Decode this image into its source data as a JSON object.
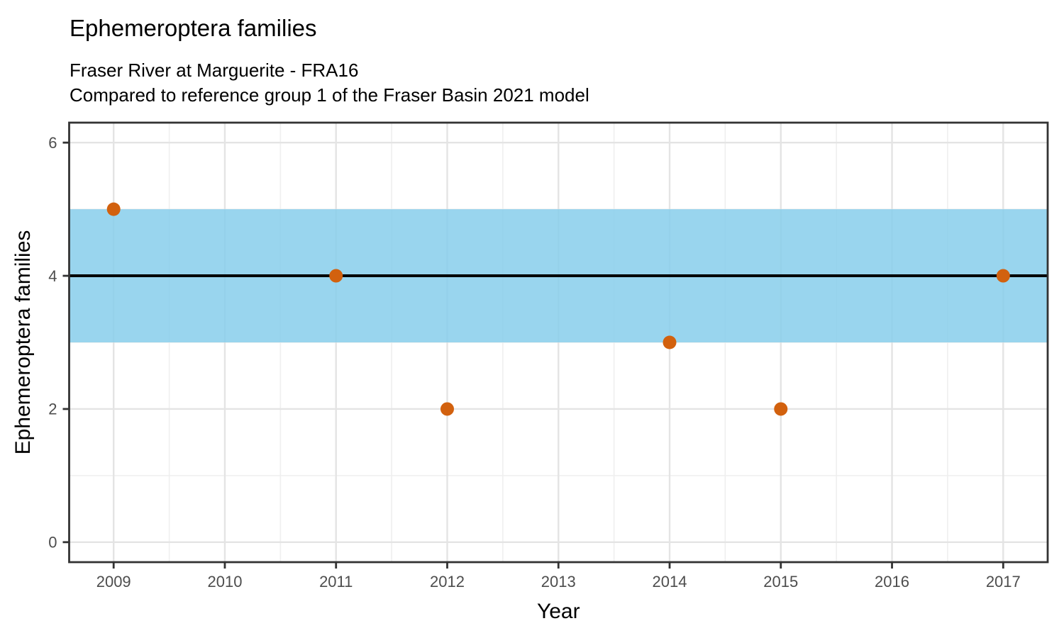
{
  "chart_data": {
    "type": "scatter",
    "title": "Ephemeroptera families",
    "subtitle_line1": "Fraser River at Marguerite - FRA16",
    "subtitle_line2": "Compared to reference group 1 of the Fraser Basin 2021 model",
    "xlabel": "Year",
    "ylabel": "Ephemeroptera families",
    "x_ticks": [
      2009,
      2010,
      2011,
      2012,
      2013,
      2014,
      2015,
      2016,
      2017
    ],
    "y_ticks": [
      0,
      2,
      4,
      6
    ],
    "xlim": [
      2008.6,
      2017.4
    ],
    "ylim": [
      -0.3,
      6.3
    ],
    "grid": "major+minor",
    "legend": "none",
    "points": [
      {
        "x": 2009,
        "y": 5
      },
      {
        "x": 2011,
        "y": 4
      },
      {
        "x": 2012,
        "y": 2
      },
      {
        "x": 2014,
        "y": 3
      },
      {
        "x": 2015,
        "y": 2
      },
      {
        "x": 2017,
        "y": 4
      }
    ],
    "reference_band": {
      "ymin": 3,
      "ymax": 5,
      "color": "#87CEEB",
      "opacity": 0.85
    },
    "reference_line": {
      "y": 4,
      "color": "#000000",
      "width": 4
    },
    "style": {
      "point_color": "#D2610E",
      "point_radius": 9.5,
      "grid_major_color": "#E4E4E4",
      "grid_minor_color": "#EFEFEF",
      "panel_border_color": "#333333",
      "tick_color": "#333333",
      "tick_label_color": "#4D4D4D",
      "axis_title_color": "#000000",
      "panel_bg": "#FFFFFF"
    }
  }
}
